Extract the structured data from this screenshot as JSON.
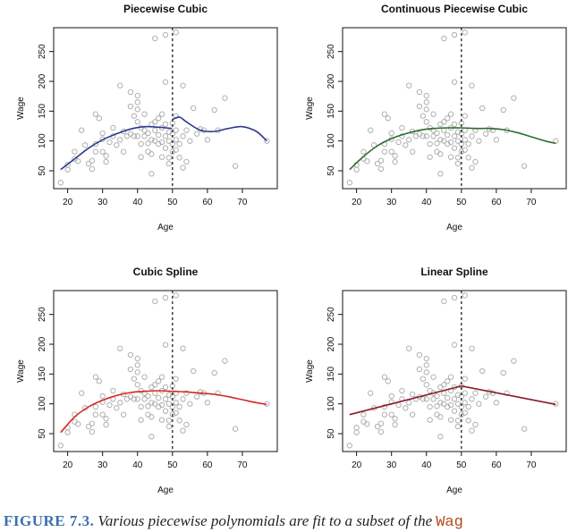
{
  "chart_data": [
    {
      "type": "scatter",
      "title": "Piecewise Cubic",
      "xlabel": "Age",
      "ylabel": "Wage",
      "xlim": [
        16,
        80
      ],
      "ylim": [
        20,
        290
      ],
      "xticks": [
        20,
        30,
        40,
        50,
        60,
        70
      ],
      "yticks": [
        50,
        100,
        150,
        200,
        250
      ],
      "knot": 50,
      "fit_color": "#2b3a8f",
      "fit_style": "discontinuous",
      "fit_left": [
        [
          18,
          52
        ],
        [
          22,
          70
        ],
        [
          26,
          88
        ],
        [
          30,
          102
        ],
        [
          34,
          112
        ],
        [
          38,
          120
        ],
        [
          42,
          124
        ],
        [
          46,
          123
        ],
        [
          49.9,
          121
        ]
      ],
      "fit_right": [
        [
          50,
          136
        ],
        [
          52,
          140
        ],
        [
          54,
          132
        ],
        [
          58,
          118
        ],
        [
          62,
          116
        ],
        [
          66,
          121
        ],
        [
          70,
          124
        ],
        [
          74,
          116
        ],
        [
          77,
          100
        ]
      ]
    },
    {
      "type": "scatter",
      "title": "Continuous Piecewise Cubic",
      "xlabel": "Age",
      "ylabel": "Wage",
      "xlim": [
        16,
        80
      ],
      "ylim": [
        20,
        290
      ],
      "xticks": [
        20,
        30,
        40,
        50,
        60,
        70
      ],
      "yticks": [
        50,
        100,
        150,
        200,
        250
      ],
      "knot": 50,
      "fit_color": "#2f6b2f",
      "fit_style": "continuous",
      "fit_points": [
        [
          18,
          52
        ],
        [
          22,
          74
        ],
        [
          26,
          92
        ],
        [
          30,
          104
        ],
        [
          34,
          112
        ],
        [
          38,
          118
        ],
        [
          42,
          121
        ],
        [
          46,
          122
        ],
        [
          50,
          122
        ],
        [
          54,
          121
        ],
        [
          58,
          121
        ],
        [
          62,
          119
        ],
        [
          66,
          114
        ],
        [
          70,
          107
        ],
        [
          74,
          100
        ],
        [
          77,
          96
        ]
      ]
    },
    {
      "type": "scatter",
      "title": "Cubic Spline",
      "xlabel": "Age",
      "ylabel": "Wage",
      "xlim": [
        16,
        80
      ],
      "ylim": [
        20,
        290
      ],
      "xticks": [
        20,
        30,
        40,
        50,
        60,
        70
      ],
      "yticks": [
        50,
        100,
        150,
        200,
        250
      ],
      "knot": 50,
      "fit_color": "#d62728",
      "fit_style": "continuous",
      "fit_points": [
        [
          18,
          52
        ],
        [
          22,
          78
        ],
        [
          26,
          95
        ],
        [
          30,
          106
        ],
        [
          34,
          114
        ],
        [
          38,
          119
        ],
        [
          42,
          121
        ],
        [
          46,
          122
        ],
        [
          50,
          121
        ],
        [
          54,
          120
        ],
        [
          58,
          118
        ],
        [
          62,
          116
        ],
        [
          66,
          112
        ],
        [
          70,
          107
        ],
        [
          74,
          102
        ],
        [
          77,
          99
        ]
      ]
    },
    {
      "type": "scatter",
      "title": "Linear Spline",
      "xlabel": "Age",
      "ylabel": "Wage",
      "xlim": [
        16,
        80
      ],
      "ylim": [
        20,
        290
      ],
      "xticks": [
        20,
        30,
        40,
        50,
        60,
        70
      ],
      "yticks": [
        50,
        100,
        150,
        200,
        250
      ],
      "knot": 50,
      "fit_color": "#8b1a2b",
      "fit_style": "continuous",
      "fit_points": [
        [
          18,
          82
        ],
        [
          50,
          130
        ],
        [
          77,
          99
        ]
      ]
    }
  ],
  "scatter_points": [
    [
      18,
      30
    ],
    [
      20,
      52
    ],
    [
      20,
      60
    ],
    [
      22,
      70
    ],
    [
      22,
      82
    ],
    [
      23,
      66
    ],
    [
      24,
      118
    ],
    [
      25,
      93
    ],
    [
      26,
      62
    ],
    [
      27,
      53
    ],
    [
      27,
      67
    ],
    [
      28,
      95
    ],
    [
      28,
      82
    ],
    [
      28,
      145
    ],
    [
      29,
      138
    ],
    [
      30,
      103
    ],
    [
      30,
      113
    ],
    [
      30,
      82
    ],
    [
      31,
      75
    ],
    [
      31,
      65
    ],
    [
      32,
      98
    ],
    [
      33,
      108
    ],
    [
      33,
      122
    ],
    [
      34,
      93
    ],
    [
      35,
      193
    ],
    [
      35,
      102
    ],
    [
      36,
      82
    ],
    [
      36,
      116
    ],
    [
      37,
      108
    ],
    [
      38,
      182
    ],
    [
      38,
      158
    ],
    [
      38,
      112
    ],
    [
      39,
      142
    ],
    [
      39,
      108
    ],
    [
      40,
      176
    ],
    [
      40,
      165
    ],
    [
      40,
      153
    ],
    [
      40,
      132
    ],
    [
      40,
      108
    ],
    [
      41,
      122
    ],
    [
      41,
      95
    ],
    [
      41,
      73
    ],
    [
      42,
      145
    ],
    [
      42,
      118
    ],
    [
      42,
      108
    ],
    [
      43,
      113
    ],
    [
      43,
      96
    ],
    [
      43,
      82
    ],
    [
      44,
      128
    ],
    [
      44,
      102
    ],
    [
      44,
      78
    ],
    [
      44,
      45
    ],
    [
      45,
      272
    ],
    [
      45,
      132
    ],
    [
      45,
      118
    ],
    [
      45,
      100
    ],
    [
      46,
      138
    ],
    [
      46,
      110
    ],
    [
      46,
      95
    ],
    [
      47,
      145
    ],
    [
      47,
      122
    ],
    [
      47,
      98
    ],
    [
      47,
      73
    ],
    [
      48,
      278
    ],
    [
      48,
      199
    ],
    [
      48,
      128
    ],
    [
      48,
      108
    ],
    [
      48,
      88
    ],
    [
      49,
      115
    ],
    [
      49,
      100
    ],
    [
      49,
      72
    ],
    [
      49,
      62
    ],
    [
      50,
      130
    ],
    [
      50,
      112
    ],
    [
      50,
      95
    ],
    [
      50,
      82
    ],
    [
      51,
      282
    ],
    [
      51,
      142
    ],
    [
      51,
      118
    ],
    [
      51,
      102
    ],
    [
      51,
      85
    ],
    [
      52,
      72
    ],
    [
      52,
      95
    ],
    [
      53,
      193
    ],
    [
      53,
      108
    ],
    [
      53,
      55
    ],
    [
      54,
      118
    ],
    [
      54,
      65
    ],
    [
      55,
      100
    ],
    [
      56,
      155
    ],
    [
      57,
      112
    ],
    [
      58,
      120
    ],
    [
      59,
      118
    ],
    [
      60,
      102
    ],
    [
      62,
      152
    ],
    [
      63,
      118
    ],
    [
      65,
      172
    ],
    [
      68,
      58
    ],
    [
      77,
      100
    ]
  ],
  "caption": {
    "label": "FIGURE 7.3.",
    "text": "Various piecewise polynomials are fit to a subset of the",
    "code": "Wag"
  }
}
